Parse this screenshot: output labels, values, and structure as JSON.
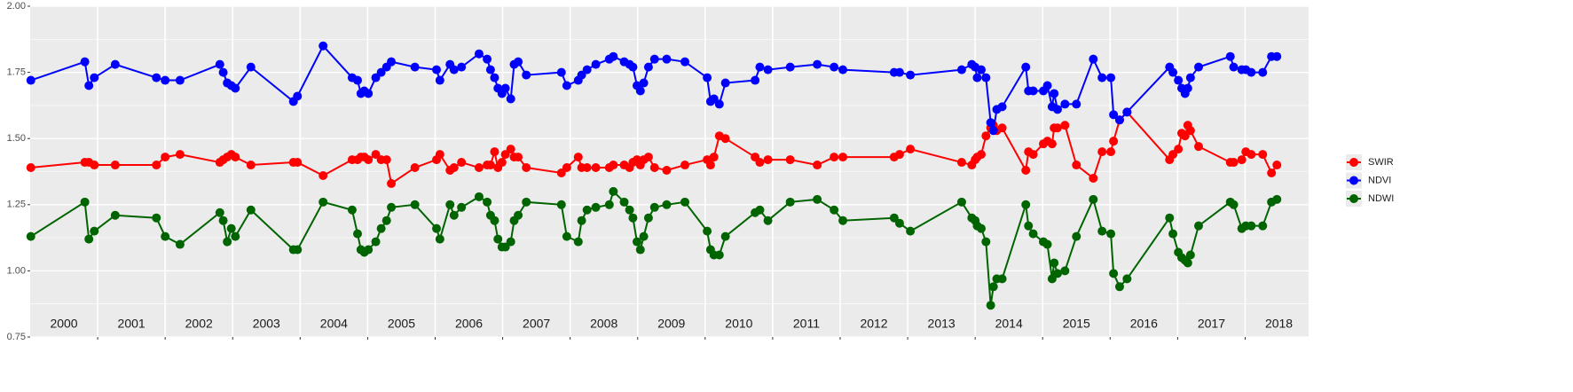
{
  "chart_data": {
    "type": "line",
    "x": [
      2000.01,
      2000.81,
      2000.87,
      2000.95,
      2001.26,
      2001.87,
      2002.0,
      2002.22,
      2002.81,
      2002.86,
      2002.92,
      2002.98,
      2003.04,
      2003.27,
      2003.9,
      2003.96,
      2004.34,
      2004.77,
      2004.85,
      2004.9,
      2004.95,
      2005.01,
      2005.12,
      2005.2,
      2005.28,
      2005.35,
      2005.7,
      2006.02,
      2006.07,
      2006.22,
      2006.28,
      2006.39,
      2006.65,
      2006.77,
      2006.82,
      2006.88,
      2006.93,
      2006.99,
      2007.04,
      2007.12,
      2007.17,
      2007.23,
      2007.35,
      2007.87,
      2007.95,
      2008.12,
      2008.17,
      2008.25,
      2008.38,
      2008.58,
      2008.64,
      2008.8,
      2008.88,
      2008.93,
      2008.99,
      2009.04,
      2009.09,
      2009.16,
      2009.25,
      2009.43,
      2009.7,
      2010.03,
      2010.08,
      2010.13,
      2010.21,
      2010.3,
      2010.74,
      2010.81,
      2010.93,
      2011.26,
      2011.66,
      2011.91,
      2012.04,
      2012.8,
      2012.88,
      2013.04,
      2013.8,
      2013.95,
      2014.0,
      2014.03,
      2014.09,
      2014.16,
      2014.23,
      2014.27,
      2014.32,
      2014.4,
      2014.75,
      2014.79,
      2014.86,
      2015.01,
      2015.07,
      2015.14,
      2015.17,
      2015.22,
      2015.33,
      2015.5,
      2015.75,
      2015.88,
      2016.01,
      2016.05,
      2016.14,
      2016.25,
      2016.88,
      2016.93,
      2017.01,
      2017.06,
      2017.11,
      2017.15,
      2017.19,
      2017.31,
      2017.78,
      2017.83,
      2017.95,
      2018.01,
      2018.09,
      2018.26,
      2018.39,
      2018.47
    ],
    "series": [
      {
        "name": "SWIR",
        "color": "#ff0000",
        "values": [
          1.39,
          1.41,
          1.41,
          1.4,
          1.4,
          1.4,
          1.43,
          1.44,
          1.41,
          1.42,
          1.43,
          1.44,
          1.43,
          1.4,
          1.41,
          1.41,
          1.36,
          1.42,
          1.42,
          1.43,
          1.43,
          1.42,
          1.44,
          1.42,
          1.42,
          1.33,
          1.39,
          1.42,
          1.44,
          1.38,
          1.39,
          1.41,
          1.39,
          1.4,
          1.4,
          1.45,
          1.39,
          1.41,
          1.44,
          1.46,
          1.43,
          1.43,
          1.39,
          1.37,
          1.39,
          1.43,
          1.39,
          1.39,
          1.39,
          1.39,
          1.4,
          1.4,
          1.39,
          1.41,
          1.42,
          1.4,
          1.42,
          1.43,
          1.39,
          1.38,
          1.4,
          1.42,
          1.4,
          1.43,
          1.51,
          1.5,
          1.43,
          1.41,
          1.42,
          1.42,
          1.4,
          1.43,
          1.43,
          1.43,
          1.44,
          1.46,
          1.41,
          1.4,
          1.42,
          1.43,
          1.44,
          1.51,
          1.54,
          1.55,
          1.53,
          1.54,
          1.38,
          1.45,
          1.44,
          1.48,
          1.49,
          1.48,
          1.54,
          1.54,
          1.55,
          1.4,
          1.35,
          1.45,
          1.45,
          1.49,
          1.57,
          1.6,
          1.42,
          1.44,
          1.46,
          1.52,
          1.51,
          1.55,
          1.53,
          1.47,
          1.41,
          1.41,
          1.42,
          1.45,
          1.44,
          1.44,
          1.37,
          1.4
        ]
      },
      {
        "name": "NDVI",
        "color": "#0000ff",
        "values": [
          1.72,
          1.79,
          1.7,
          1.73,
          1.78,
          1.73,
          1.72,
          1.72,
          1.78,
          1.75,
          1.71,
          1.7,
          1.69,
          1.77,
          1.64,
          1.66,
          1.85,
          1.73,
          1.72,
          1.67,
          1.68,
          1.67,
          1.73,
          1.75,
          1.77,
          1.79,
          1.77,
          1.76,
          1.72,
          1.78,
          1.76,
          1.77,
          1.82,
          1.8,
          1.76,
          1.73,
          1.69,
          1.67,
          1.69,
          1.65,
          1.78,
          1.79,
          1.74,
          1.75,
          1.7,
          1.72,
          1.74,
          1.76,
          1.78,
          1.8,
          1.81,
          1.79,
          1.78,
          1.77,
          1.7,
          1.68,
          1.71,
          1.77,
          1.8,
          1.8,
          1.79,
          1.73,
          1.64,
          1.65,
          1.63,
          1.71,
          1.72,
          1.77,
          1.76,
          1.77,
          1.78,
          1.77,
          1.76,
          1.75,
          1.75,
          1.74,
          1.76,
          1.78,
          1.77,
          1.73,
          1.76,
          1.73,
          1.56,
          1.53,
          1.61,
          1.62,
          1.77,
          1.68,
          1.68,
          1.68,
          1.7,
          1.62,
          1.67,
          1.61,
          1.63,
          1.63,
          1.8,
          1.73,
          1.73,
          1.59,
          1.57,
          1.6,
          1.77,
          1.75,
          1.72,
          1.69,
          1.67,
          1.69,
          1.73,
          1.77,
          1.81,
          1.77,
          1.76,
          1.76,
          1.75,
          1.75,
          1.81,
          1.81
        ]
      },
      {
        "name": "NDWI",
        "color": "#006400",
        "values": [
          1.13,
          1.26,
          1.12,
          1.15,
          1.21,
          1.2,
          1.13,
          1.1,
          1.22,
          1.19,
          1.11,
          1.16,
          1.13,
          1.23,
          1.08,
          1.08,
          1.26,
          1.23,
          1.14,
          1.08,
          1.07,
          1.08,
          1.11,
          1.16,
          1.19,
          1.24,
          1.25,
          1.16,
          1.12,
          1.25,
          1.21,
          1.24,
          1.28,
          1.26,
          1.21,
          1.19,
          1.12,
          1.09,
          1.09,
          1.11,
          1.19,
          1.21,
          1.26,
          1.25,
          1.13,
          1.11,
          1.19,
          1.23,
          1.24,
          1.25,
          1.3,
          1.26,
          1.23,
          1.2,
          1.11,
          1.08,
          1.13,
          1.2,
          1.24,
          1.25,
          1.26,
          1.15,
          1.08,
          1.06,
          1.06,
          1.13,
          1.22,
          1.23,
          1.19,
          1.26,
          1.27,
          1.23,
          1.19,
          1.2,
          1.18,
          1.15,
          1.26,
          1.2,
          1.19,
          1.17,
          1.16,
          1.11,
          0.87,
          0.94,
          0.97,
          0.97,
          1.25,
          1.17,
          1.14,
          1.11,
          1.1,
          0.97,
          1.03,
          0.99,
          1.0,
          1.13,
          1.27,
          1.15,
          1.14,
          0.99,
          0.94,
          0.97,
          1.2,
          1.14,
          1.07,
          1.05,
          1.04,
          1.03,
          1.06,
          1.17,
          1.26,
          1.25,
          1.16,
          1.17,
          1.17,
          1.17,
          1.26,
          1.27
        ]
      }
    ],
    "xlim": [
      2000,
      2018.94
    ],
    "xgrid": [
      2001,
      2002,
      2003,
      2004,
      2005,
      2006,
      2007,
      2008,
      2009,
      2010,
      2011,
      2012,
      2013,
      2014,
      2015,
      2016,
      2017,
      2018
    ],
    "year_labels": [
      {
        "value": 2000.5,
        "label": "2000"
      },
      {
        "value": 2001.5,
        "label": "2001"
      },
      {
        "value": 2002.5,
        "label": "2002"
      },
      {
        "value": 2003.5,
        "label": "2003"
      },
      {
        "value": 2004.5,
        "label": "2004"
      },
      {
        "value": 2005.5,
        "label": "2005"
      },
      {
        "value": 2006.5,
        "label": "2006"
      },
      {
        "value": 2007.5,
        "label": "2007"
      },
      {
        "value": 2008.5,
        "label": "2008"
      },
      {
        "value": 2009.5,
        "label": "2009"
      },
      {
        "value": 2010.5,
        "label": "2010"
      },
      {
        "value": 2011.5,
        "label": "2011"
      },
      {
        "value": 2012.5,
        "label": "2012"
      },
      {
        "value": 2013.5,
        "label": "2013"
      },
      {
        "value": 2014.5,
        "label": "2014"
      },
      {
        "value": 2015.5,
        "label": "2015"
      },
      {
        "value": 2016.5,
        "label": "2016"
      },
      {
        "value": 2017.5,
        "label": "2017"
      },
      {
        "value": 2018.5,
        "label": "2018"
      }
    ],
    "ylim": [
      0.75,
      2.0
    ],
    "yticks": [
      {
        "value": 0.75,
        "label": "0.75"
      },
      {
        "value": 1.0,
        "label": "1.00"
      },
      {
        "value": 1.25,
        "label": "1.25"
      },
      {
        "value": 1.5,
        "label": "1.50"
      },
      {
        "value": 1.75,
        "label": "1.75"
      },
      {
        "value": 2.0,
        "label": "2.00"
      }
    ],
    "yminor": [
      0.875,
      1.125,
      1.375,
      1.625,
      1.875
    ],
    "grid": true,
    "legend": "right"
  }
}
